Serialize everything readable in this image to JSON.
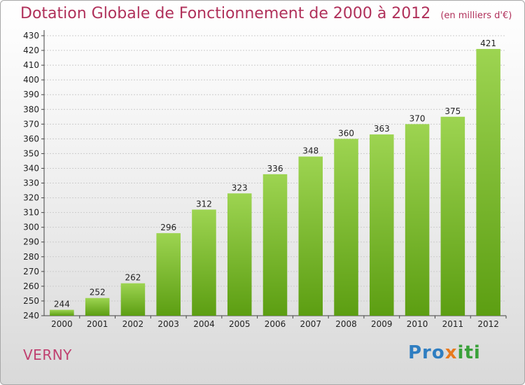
{
  "title": {
    "main": "Dotation Globale de Fonctionnement de 2000 à 2012",
    "unit": "(en milliers d'€)"
  },
  "place_name": "VERNY",
  "logo": {
    "part1": "Pro",
    "part2": "x",
    "part3": "iti"
  },
  "colors": {
    "bar_top": "#9dd451",
    "bar_bottom": "#5c9e12",
    "title": "#b0305a",
    "grid": "#cccccc"
  },
  "chart_data": {
    "type": "bar",
    "categories": [
      "2000",
      "2001",
      "2002",
      "2003",
      "2004",
      "2005",
      "2006",
      "2007",
      "2008",
      "2009",
      "2010",
      "2011",
      "2012"
    ],
    "values": [
      244,
      252,
      262,
      296,
      312,
      323,
      336,
      348,
      360,
      363,
      370,
      375,
      421
    ],
    "ylim": [
      240,
      430
    ],
    "ytick_step": 10,
    "grid": true
  }
}
